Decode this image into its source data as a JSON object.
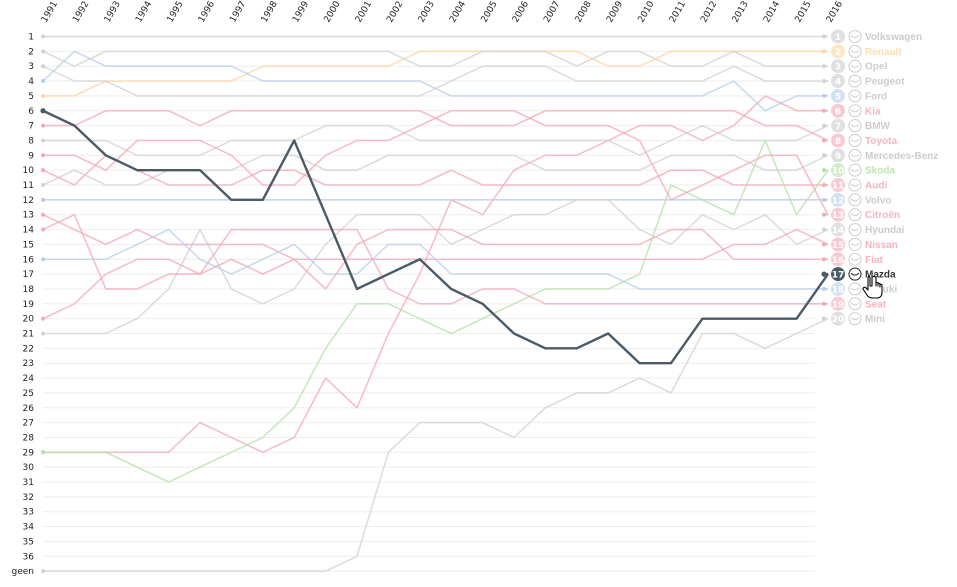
{
  "chart_data": {
    "type": "line",
    "title": "",
    "x": [
      "1991",
      "1992",
      "1993",
      "1994",
      "1995",
      "1996",
      "1997",
      "1998",
      "1999",
      "2000",
      "2001",
      "2002",
      "2003",
      "2004",
      "2005",
      "2006",
      "2007",
      "2008",
      "2009",
      "2010",
      "2011",
      "2012",
      "2013",
      "2014",
      "2015",
      "2016"
    ],
    "rank_labels": [
      "1",
      "2",
      "3",
      "4",
      "5",
      "6",
      "7",
      "8",
      "9",
      "10",
      "11",
      "12",
      "13",
      "14",
      "15",
      "16",
      "17",
      "18",
      "19",
      "20",
      "21",
      "22",
      "23",
      "24",
      "25",
      "26",
      "27",
      "28",
      "29",
      "30",
      "31",
      "32",
      "33",
      "34",
      "35",
      "36",
      "geen"
    ],
    "y_reversed": true,
    "ylim": [
      1,
      37
    ],
    "highlight": "Mazda",
    "colors": {
      "highlight": "#4a5a67",
      "gray": "#d2d2d2",
      "red": "#f3a8b6",
      "green": "#b5e0a8",
      "blue": "#b8cde8",
      "orange": "#fcd6a4",
      "badge_gray": "#cccccc"
    },
    "series": [
      {
        "name": "Volkswagen",
        "rank_2016": "1",
        "icon": "volkswagen-icon",
        "color": "gray",
        "values": [
          1,
          1,
          1,
          1,
          1,
          1,
          1,
          1,
          1,
          1,
          1,
          1,
          1,
          1,
          1,
          1,
          1,
          1,
          1,
          1,
          1,
          1,
          1,
          1,
          1,
          1
        ]
      },
      {
        "name": "Renault",
        "rank_2016": "2",
        "icon": "renault-icon",
        "color": "orange",
        "values": [
          5,
          5,
          4,
          4,
          4,
          4,
          4,
          3,
          3,
          3,
          3,
          3,
          2,
          2,
          2,
          2,
          2,
          2,
          3,
          3,
          2,
          2,
          2,
          2,
          2,
          2
        ]
      },
      {
        "name": "Opel",
        "rank_2016": "3",
        "icon": "opel-icon",
        "color": "gray",
        "values": [
          2,
          3,
          2,
          2,
          2,
          2,
          2,
          2,
          2,
          2,
          2,
          2,
          3,
          3,
          2,
          2,
          2,
          3,
          2,
          2,
          3,
          3,
          2,
          3,
          3,
          3
        ]
      },
      {
        "name": "Peugeot",
        "rank_2016": "4",
        "icon": "peugeot-icon",
        "color": "gray",
        "values": [
          3,
          4,
          4,
          5,
          5,
          5,
          5,
          5,
          5,
          5,
          5,
          5,
          5,
          4,
          3,
          3,
          3,
          4,
          4,
          4,
          4,
          4,
          3,
          4,
          4,
          4
        ]
      },
      {
        "name": "Ford",
        "rank_2016": "5",
        "icon": "ford-icon",
        "color": "blue",
        "values": [
          4,
          2,
          3,
          3,
          3,
          3,
          3,
          4,
          4,
          4,
          4,
          4,
          4,
          5,
          5,
          5,
          5,
          5,
          5,
          5,
          5,
          5,
          4,
          6,
          5,
          5
        ]
      },
      {
        "name": "Kia",
        "rank_2016": "6",
        "icon": "kia-icon",
        "color": "red",
        "values": [
          29,
          29,
          29,
          29,
          29,
          27,
          28,
          29,
          28,
          24,
          26,
          21,
          17,
          12,
          13,
          10,
          9,
          9,
          8,
          7,
          7,
          8,
          7,
          5,
          6,
          6
        ]
      },
      {
        "name": "BMW",
        "rank_2016": "7",
        "icon": "bmw-icon",
        "color": "gray",
        "values": [
          8,
          8,
          8,
          9,
          9,
          9,
          8,
          8,
          8,
          7,
          7,
          7,
          8,
          8,
          8,
          8,
          8,
          8,
          8,
          9,
          8,
          7,
          8,
          8,
          8,
          7
        ]
      },
      {
        "name": "Toyota",
        "rank_2016": "8",
        "icon": "toyota-icon",
        "color": "red",
        "values": [
          7,
          7,
          6,
          6,
          6,
          7,
          6,
          6,
          6,
          6,
          6,
          6,
          6,
          7,
          7,
          7,
          6,
          6,
          6,
          6,
          6,
          6,
          6,
          7,
          7,
          8
        ]
      },
      {
        "name": "Mercedes-Benz",
        "rank_2016": "9",
        "icon": "mercedes-icon",
        "color": "gray",
        "values": [
          11,
          10,
          11,
          11,
          10,
          10,
          10,
          9,
          9,
          10,
          10,
          9,
          9,
          9,
          9,
          9,
          10,
          10,
          10,
          10,
          9,
          9,
          9,
          10,
          10,
          9
        ]
      },
      {
        "name": "Skoda",
        "rank_2016": "10",
        "icon": "skoda-icon",
        "color": "green",
        "values": [
          29,
          29,
          29,
          30,
          31,
          30,
          29,
          28,
          26,
          22,
          19,
          19,
          20,
          21,
          20,
          19,
          18,
          18,
          18,
          17,
          11,
          12,
          13,
          8,
          13,
          10
        ]
      },
      {
        "name": "Audi",
        "rank_2016": "11",
        "icon": "audi-icon",
        "color": "red",
        "values": [
          10,
          11,
          9,
          10,
          11,
          11,
          11,
          10,
          10,
          11,
          11,
          11,
          11,
          10,
          11,
          11,
          11,
          11,
          11,
          11,
          10,
          10,
          11,
          11,
          11,
          11
        ]
      },
      {
        "name": "Volvo",
        "rank_2016": "12",
        "icon": "volvo-icon",
        "color": "blue",
        "values": [
          12,
          12,
          12,
          12,
          12,
          12,
          12,
          12,
          12,
          12,
          12,
          12,
          12,
          12,
          12,
          12,
          12,
          12,
          12,
          12,
          12,
          12,
          12,
          12,
          12,
          12
        ]
      },
      {
        "name": "Citroën",
        "rank_2016": "13",
        "icon": "citroen-icon",
        "color": "red",
        "values": [
          9,
          9,
          10,
          8,
          8,
          8,
          9,
          11,
          11,
          9,
          8,
          8,
          7,
          6,
          6,
          6,
          7,
          7,
          7,
          8,
          12,
          11,
          10,
          9,
          9,
          13
        ]
      },
      {
        "name": "Hyundai",
        "rank_2016": "14",
        "icon": "hyundai-icon",
        "color": "gray",
        "values": [
          21,
          21,
          21,
          20,
          18,
          14,
          18,
          19,
          18,
          15,
          13,
          13,
          13,
          15,
          14,
          13,
          13,
          12,
          12,
          14,
          15,
          13,
          14,
          13,
          15,
          14
        ]
      },
      {
        "name": "Nissan",
        "rank_2016": "15",
        "icon": "nissan-icon",
        "color": "red",
        "values": [
          13,
          14,
          15,
          14,
          15,
          15,
          15,
          15,
          16,
          16,
          16,
          16,
          16,
          16,
          16,
          16,
          16,
          16,
          16,
          16,
          16,
          16,
          15,
          15,
          14,
          15
        ]
      },
      {
        "name": "Fiat",
        "rank_2016": "16",
        "icon": "fiat-icon",
        "color": "red",
        "values": [
          14,
          13,
          18,
          18,
          17,
          17,
          16,
          17,
          16,
          18,
          15,
          14,
          14,
          14,
          15,
          15,
          15,
          15,
          15,
          15,
          14,
          14,
          16,
          16,
          16,
          16
        ]
      },
      {
        "name": "Mazda",
        "rank_2016": "17",
        "icon": "mazda-icon",
        "color": "highlight",
        "values": [
          6,
          7,
          9,
          10,
          10,
          10,
          12,
          12,
          8,
          13,
          18,
          17,
          16,
          18,
          19,
          21,
          22,
          22,
          21,
          23,
          23,
          20,
          20,
          20,
          20,
          17
        ]
      },
      {
        "name": "Suzuki",
        "rank_2016": "18",
        "icon": "suzuki-icon",
        "color": "blue",
        "values": [
          16,
          16,
          16,
          15,
          14,
          16,
          17,
          16,
          15,
          17,
          17,
          15,
          15,
          17,
          17,
          17,
          17,
          17,
          17,
          18,
          18,
          18,
          18,
          18,
          18,
          18
        ]
      },
      {
        "name": "Seat",
        "rank_2016": "19",
        "icon": "seat-icon",
        "color": "red",
        "values": [
          20,
          19,
          17,
          16,
          16,
          17,
          14,
          14,
          14,
          14,
          14,
          18,
          19,
          19,
          18,
          18,
          19,
          19,
          19,
          19,
          19,
          19,
          19,
          19,
          19,
          19
        ]
      },
      {
        "name": "Mini",
        "rank_2016": "20",
        "icon": "mini-icon",
        "color": "gray",
        "values": [
          37,
          37,
          37,
          37,
          37,
          37,
          37,
          37,
          37,
          37,
          36,
          29,
          27,
          27,
          27,
          28,
          26,
          25,
          25,
          24,
          25,
          21,
          21,
          22,
          21,
          20
        ]
      }
    ]
  }
}
